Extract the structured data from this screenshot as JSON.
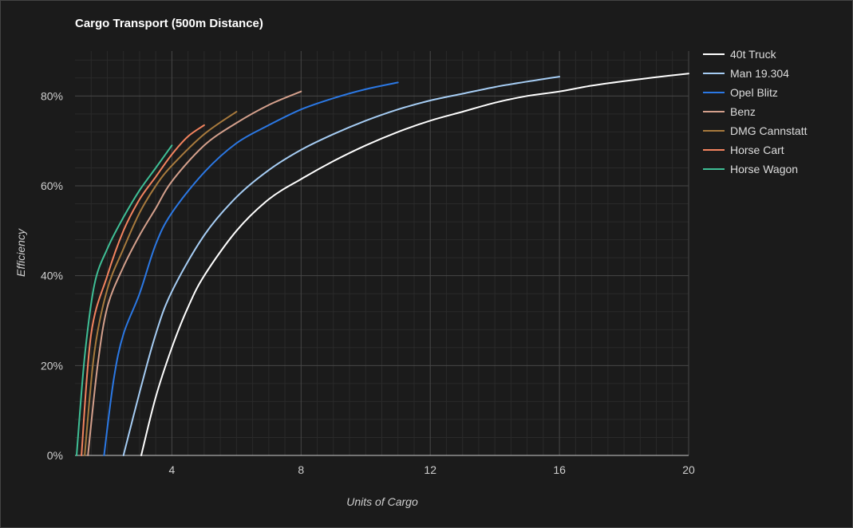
{
  "chart_data": {
    "type": "line",
    "title": "Cargo Transport (500m Distance)",
    "xlabel": "Units of Cargo",
    "ylabel": "Efficiency",
    "xlim": [
      1,
      20
    ],
    "ylim": [
      0,
      90
    ],
    "x_ticks": [
      4,
      8,
      12,
      16,
      20
    ],
    "y_ticks": [
      0,
      20,
      40,
      60,
      80
    ],
    "y_tick_suffix": "%",
    "grid": true,
    "legend_position": "right",
    "series": [
      {
        "name": "40t Truck",
        "color": "#ffffff",
        "x": [
          3.05,
          3.5,
          4,
          4.5,
          5,
          6,
          7,
          8,
          9,
          10,
          11,
          12,
          13,
          14,
          15,
          16,
          17,
          18,
          19,
          20
        ],
        "y": [
          0,
          13,
          24,
          33,
          40,
          50,
          57,
          61.5,
          65.5,
          69,
          72,
          74.5,
          76.5,
          78.5,
          80,
          81,
          82.3,
          83.3,
          84.2,
          85
        ]
      },
      {
        "name": "Man 19.304",
        "color": "#a6cdf4",
        "x": [
          2.5,
          3,
          3.5,
          4,
          5,
          6,
          7,
          8,
          9,
          10,
          11,
          12,
          13,
          14,
          15,
          16
        ],
        "y": [
          0,
          14,
          27,
          36.5,
          49,
          57.5,
          63.5,
          68,
          71.5,
          74.5,
          77,
          79,
          80.5,
          82,
          83.2,
          84.3
        ]
      },
      {
        "name": "Opel Blitz",
        "color": "#2b78e4",
        "x": [
          1.9,
          2.2,
          2.5,
          3,
          3.5,
          4,
          5,
          6,
          7,
          8,
          9,
          10,
          11
        ],
        "y": [
          0,
          17,
          27,
          36,
          47,
          54,
          63,
          69.5,
          73.5,
          77,
          79.5,
          81.5,
          83
        ]
      },
      {
        "name": "Benz",
        "color": "#d4a08c",
        "x": [
          1.4,
          1.7,
          2,
          2.5,
          3,
          3.5,
          4,
          5,
          6,
          7,
          8
        ],
        "y": [
          0,
          20,
          33,
          42,
          49,
          55,
          61,
          69,
          74,
          78,
          81
        ]
      },
      {
        "name": "DMG Cannstatt",
        "color": "#a87a3d",
        "x": [
          1.3,
          1.6,
          2,
          2.5,
          3,
          3.5,
          4,
          5,
          6
        ],
        "y": [
          0,
          23,
          37,
          46,
          54,
          60,
          64.5,
          71.5,
          76.5
        ]
      },
      {
        "name": "Horse Cart",
        "color": "#f4845f",
        "x": [
          1.2,
          1.5,
          2,
          2.5,
          3,
          3.5,
          4,
          4.5,
          5
        ],
        "y": [
          0,
          27,
          40,
          50,
          57,
          62,
          67,
          71,
          73.5
        ]
      },
      {
        "name": "Horse Wagon",
        "color": "#3fbf96",
        "x": [
          1.05,
          1.3,
          1.6,
          2,
          2.5,
          3,
          3.5,
          4
        ],
        "y": [
          0,
          22,
          38,
          46,
          53,
          59,
          64,
          69
        ]
      }
    ]
  }
}
